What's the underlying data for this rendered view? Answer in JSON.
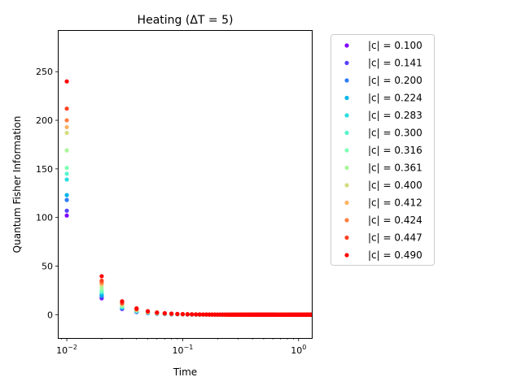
{
  "chart_data": {
    "type": "scatter",
    "title": "Heating (ΔT = 5)",
    "xlabel": "Time",
    "ylabel": "Quantum Fisher Information",
    "x_scale": "log",
    "xlim": [
      0.0085,
      1.3
    ],
    "ylim": [
      -24,
      292
    ],
    "x_ticks": [
      {
        "value": 0.01,
        "base": "10",
        "exp": "−2"
      },
      {
        "value": 0.1,
        "base": "10",
        "exp": "−1"
      },
      {
        "value": 1,
        "base": "10",
        "exp": "0"
      }
    ],
    "y_ticks": [
      0,
      50,
      100,
      150,
      200,
      250
    ],
    "legend_position": "outside right",
    "grid": false,
    "decay_x_range": [
      0.01,
      1.3
    ],
    "decay_step": 0.01,
    "series": [
      {
        "name": "|c| = 0.100",
        "color": "#8000ff",
        "peak": 102
      },
      {
        "name": "|c| = 0.141",
        "color": "#5641fd",
        "peak": 107
      },
      {
        "name": "|c| = 0.200",
        "color": "#2c7ef7",
        "peak": 118
      },
      {
        "name": "|c| = 0.224",
        "color": "#00b5eb",
        "peak": 123
      },
      {
        "name": "|c| = 0.283",
        "color": "#2adddd",
        "peak": 139
      },
      {
        "name": "|c| = 0.300",
        "color": "#54f6cb",
        "peak": 145
      },
      {
        "name": "|c| = 0.316",
        "color": "#80ffb4",
        "peak": 151
      },
      {
        "name": "|c| = 0.361",
        "color": "#aaf69b",
        "peak": 169
      },
      {
        "name": "|c| = 0.400",
        "color": "#d4dd80",
        "peak": 187
      },
      {
        "name": "|c| = 0.412",
        "color": "#ffb360",
        "peak": 193
      },
      {
        "name": "|c| = 0.424",
        "color": "#ff7e41",
        "peak": 200
      },
      {
        "name": "|c| = 0.447",
        "color": "#ff4121",
        "peak": 212
      },
      {
        "name": "|c| = 0.490",
        "color": "#ff0000",
        "peak": 240
      }
    ]
  }
}
